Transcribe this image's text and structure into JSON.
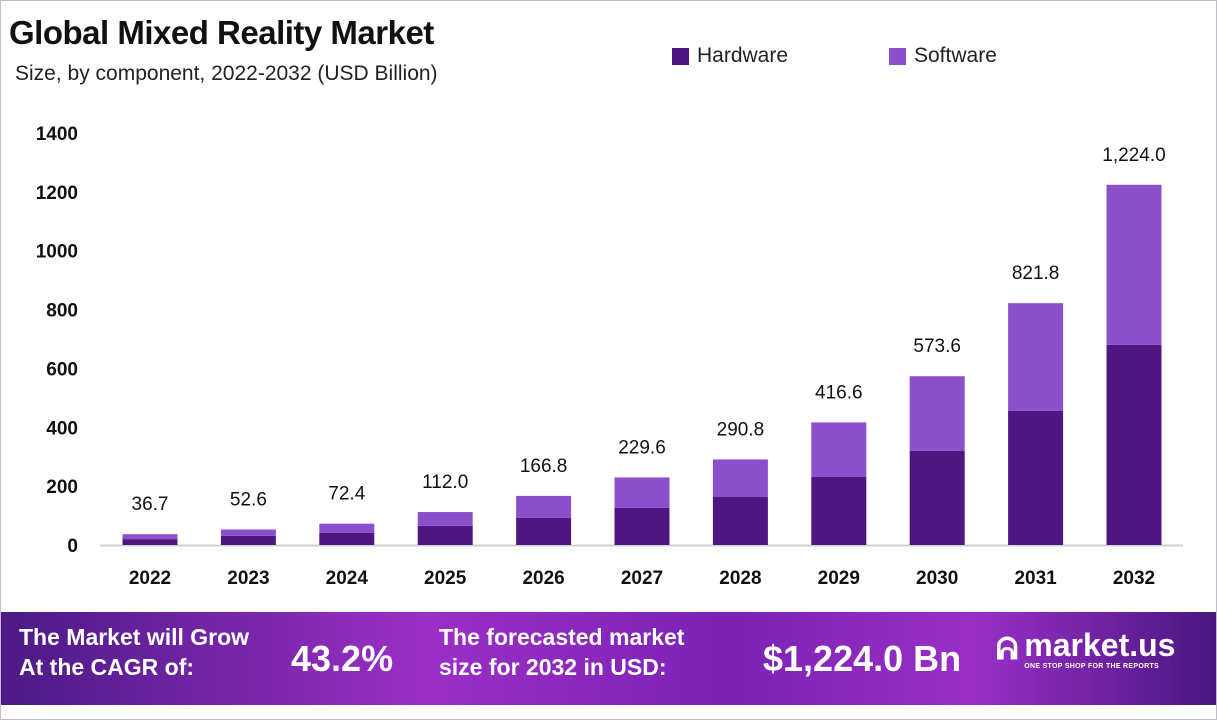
{
  "title": "Global Mixed Reality Market",
  "subtitle": "Size, by component, 2022-2032 (USD Billion)",
  "colors": {
    "hardware": "#4f1580",
    "software": "#8b4fcc"
  },
  "chart_data": {
    "type": "bar",
    "stacked": true,
    "title": "Global Mixed Reality Market",
    "subtitle": "Size, by component, 2022-2032 (USD Billion)",
    "categories": [
      "2022",
      "2023",
      "2024",
      "2025",
      "2026",
      "2027",
      "2028",
      "2029",
      "2030",
      "2031",
      "2032"
    ],
    "series": [
      {
        "name": "Hardware",
        "values": [
          20,
          31,
          41,
          65,
          92,
          126,
          163,
          231,
          320,
          456,
          680
        ]
      },
      {
        "name": "Software",
        "values": [
          16.7,
          21.6,
          31.4,
          47.0,
          74.8,
          103.6,
          127.8,
          185.6,
          253.6,
          365.8,
          544.0
        ]
      }
    ],
    "totals": [
      36.7,
      52.6,
      72.4,
      112.0,
      166.8,
      229.6,
      290.8,
      416.6,
      573.6,
      821.8,
      1224.0
    ],
    "data_labels": [
      "36.7",
      "52.6",
      "72.4",
      "112.0",
      "166.8",
      "229.6",
      "290.8",
      "416.6",
      "573.6",
      "821.8",
      "1,224.0"
    ],
    "yticks": [
      "0",
      "200",
      "400",
      "600",
      "800",
      "1000",
      "1200",
      "1400"
    ],
    "ylim": [
      0,
      1400
    ],
    "grid": false,
    "legend": "top-right",
    "xlabel": "",
    "ylabel": ""
  },
  "banner": {
    "cagr_label_1": "The Market will Grow",
    "cagr_label_2": "At the CAGR of:",
    "cagr_value": "43.2%",
    "forecast_label_1": "The forecasted market",
    "forecast_label_2": "size for 2032 in USD:",
    "forecast_value": "$1,224.0 Bn",
    "logo_name": "market.us",
    "logo_tagline": "ONE STOP SHOP FOR THE REPORTS"
  }
}
